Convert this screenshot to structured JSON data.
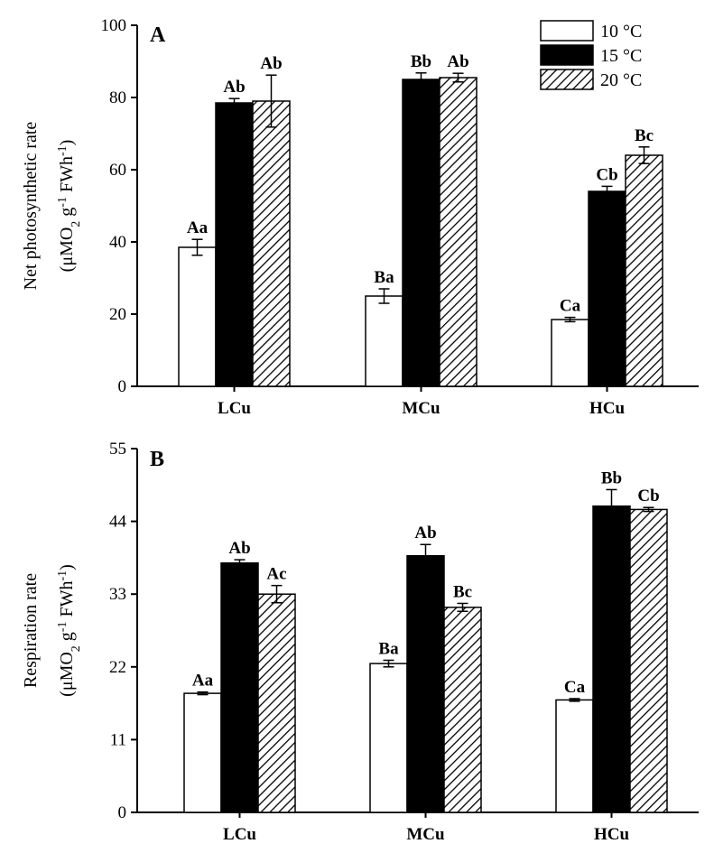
{
  "chart_data": [
    {
      "type": "bar",
      "panel_label": "A",
      "categories": [
        "LCu",
        "MCu",
        "HCu"
      ],
      "series": [
        {
          "name": "10 °C",
          "values": [
            38.5,
            25.0,
            18.5
          ],
          "errors": [
            2.2,
            2.0,
            0.6
          ],
          "labels": [
            "Aa",
            "Ba",
            "Ca"
          ]
        },
        {
          "name": "15 °C",
          "values": [
            78.5,
            85.0,
            54.0
          ],
          "errors": [
            1.2,
            1.8,
            1.4
          ],
          "labels": [
            "Ab",
            "Bb",
            "Cb"
          ]
        },
        {
          "name": "20 °C",
          "values": [
            79.0,
            85.5,
            64.0
          ],
          "errors": [
            7.2,
            1.2,
            2.3
          ],
          "labels": [
            "Ab",
            "Ab",
            "Bc"
          ]
        }
      ],
      "ylabel_line1": "Net photosynthetic rate",
      "ylabel_line2_parts": [
        "(μMO",
        "2",
        " g",
        "-1",
        " FWh",
        "-1",
        ")"
      ],
      "yticks": [
        0,
        20,
        40,
        60,
        80,
        100
      ],
      "ylim": [
        0,
        100
      ],
      "legend_position": "top-right",
      "grid": false
    },
    {
      "type": "bar",
      "panel_label": "B",
      "categories": [
        "LCu",
        "MCu",
        "HCu"
      ],
      "series": [
        {
          "name": "10 °C",
          "values": [
            18.0,
            22.5,
            17.0
          ],
          "errors": [
            0.2,
            0.5,
            0.2
          ],
          "labels": [
            "Aa",
            "Ba",
            "Ca"
          ]
        },
        {
          "name": "15 °C",
          "values": [
            37.7,
            38.8,
            46.3
          ],
          "errors": [
            0.5,
            1.7,
            2.5
          ],
          "labels": [
            "Ab",
            "Ab",
            "Bb"
          ]
        },
        {
          "name": "20 °C",
          "values": [
            33.0,
            31.0,
            45.8
          ],
          "errors": [
            1.3,
            0.6,
            0.3
          ],
          "labels": [
            "Ac",
            "Bc",
            "Cb"
          ]
        }
      ],
      "ylabel_line1": "Respiration rate",
      "ylabel_line2_parts": [
        "(μMO",
        "2",
        " g",
        "-1",
        " FWh",
        "-1",
        ")"
      ],
      "yticks": [
        0,
        11,
        22,
        33,
        44,
        55
      ],
      "ylim": [
        0,
        55
      ],
      "grid": false
    }
  ],
  "legend": [
    {
      "label": "10 °C",
      "fill": "white"
    },
    {
      "label": "15 °C",
      "fill": "black"
    },
    {
      "label": "20 °C",
      "fill": "hatch"
    }
  ],
  "colors": {
    "bar_white": "#ffffff",
    "bar_black": "#000000",
    "stroke": "#000000"
  }
}
